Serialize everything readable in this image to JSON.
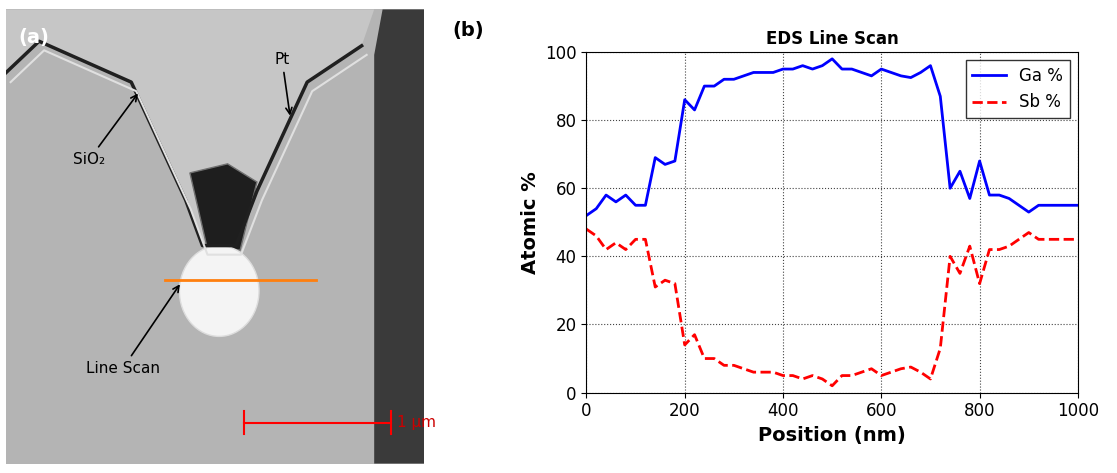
{
  "image_panel": {
    "label": "(a)",
    "annotations": [
      "SiO₂",
      "Pt",
      "Line Scan"
    ],
    "scale_bar": "1 μm"
  },
  "chart_data": {
    "type": "line",
    "title": "EDS Line Scan",
    "annotations": [
      "(b)"
    ],
    "x_label": "Position (nm)",
    "y_label": "Atomic %",
    "x": [
      0,
      20,
      40,
      60,
      80,
      100,
      120,
      140,
      160,
      180,
      200,
      220,
      240,
      260,
      280,
      300,
      320,
      340,
      360,
      380,
      400,
      420,
      440,
      460,
      480,
      500,
      520,
      540,
      560,
      580,
      600,
      620,
      640,
      660,
      680,
      700,
      720,
      740,
      760,
      780,
      800,
      820,
      840,
      860,
      880,
      900,
      920,
      940,
      960,
      980,
      1000
    ],
    "series": [
      {
        "name": "Ga %",
        "color": "#0000ff",
        "line_style": "solid",
        "values": [
          52,
          54,
          58,
          56,
          58,
          55,
          55,
          69,
          67,
          68,
          86,
          83,
          90,
          90,
          92,
          92,
          93,
          94,
          94,
          94,
          95,
          95,
          96,
          95,
          96,
          98,
          95,
          95,
          94,
          93,
          95,
          94,
          93,
          92.5,
          94,
          96,
          87,
          60,
          65,
          57,
          68,
          58,
          58,
          57,
          55,
          53,
          55,
          55,
          55,
          55,
          55
        ]
      },
      {
        "name": "Sb %",
        "color": "#ff0000",
        "line_style": "dashed",
        "values": [
          48,
          46,
          42,
          44,
          42,
          45,
          45,
          31,
          33,
          32,
          14,
          17,
          10,
          10,
          8,
          8,
          7,
          6,
          6,
          6,
          5,
          5,
          4,
          5,
          4,
          2,
          5,
          5,
          6,
          7,
          5,
          6,
          7,
          7.5,
          6,
          4,
          13,
          40,
          35,
          43,
          32,
          42,
          42,
          43,
          45,
          47,
          45,
          45,
          45,
          45,
          45
        ]
      }
    ],
    "xlim": [
      0,
      1000
    ],
    "xticks": [
      0,
      200,
      400,
      600,
      800,
      1000
    ],
    "ylim": [
      0,
      100
    ],
    "yticks": [
      0,
      20,
      40,
      60,
      80,
      100
    ],
    "grid": true,
    "legend": "upper right"
  }
}
